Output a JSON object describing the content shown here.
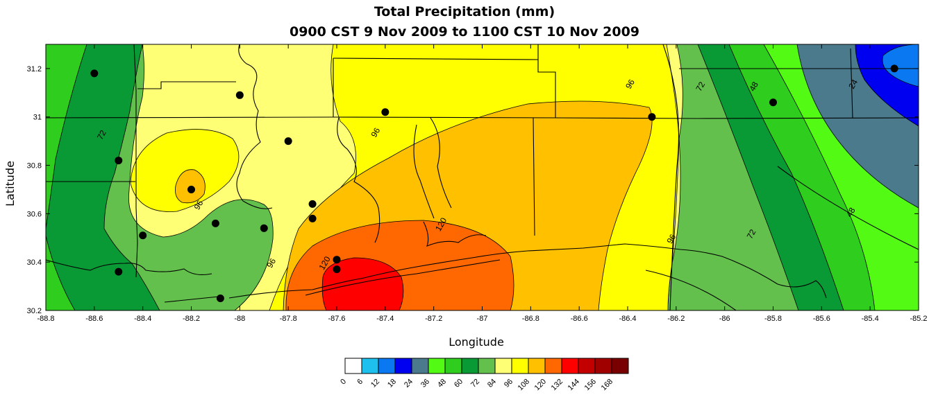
{
  "chart_data": {
    "type": "heatmap",
    "subtype": "filled contour map",
    "title": "Total Precipitation (mm)",
    "subtitle": "0900 CST 9 Nov 2009 to 1100 CST 10 Nov 2009",
    "xlabel": "Longitude",
    "ylabel": "Latitude",
    "xlim": [
      -88.8,
      -85.2
    ],
    "ylim": [
      30.2,
      31.3
    ],
    "x_ticks": [
      "-88.8",
      "-88.6",
      "-88.4",
      "-88.2",
      "-88",
      "-87.8",
      "-87.6",
      "-87.4",
      "-87.2",
      "-87",
      "-86.8",
      "-86.6",
      "-86.4",
      "-86.2",
      "-86",
      "-85.8",
      "-85.6",
      "-85.4",
      "-85.2"
    ],
    "y_ticks": [
      "30.2",
      "30.4",
      "30.6",
      "30.8",
      "31",
      "31.2"
    ],
    "legend": {
      "placement": "bottom",
      "levels": [
        "0",
        "6",
        "12",
        "18",
        "24",
        "36",
        "48",
        "60",
        "72",
        "84",
        "96",
        "108",
        "120",
        "132",
        "144",
        "156",
        "168"
      ],
      "colors": [
        "#ffffff",
        "#1ec0ee",
        "#0a78f0",
        "#0000f0",
        "#4a7a8c",
        "#53fa13",
        "#2fcd1d",
        "#0a9a35",
        "#63c04c",
        "#ffff75",
        "#ffff00",
        "#ffc000",
        "#ff6800",
        "#ff0000",
        "#c20000",
        "#a00000",
        "#780000"
      ]
    },
    "contour_labels": [
      {
        "value": "72",
        "lon": -88.56,
        "lat": 30.92
      },
      {
        "value": "96",
        "lon": -88.16,
        "lat": 30.63
      },
      {
        "value": "96",
        "lon": -87.86,
        "lat": 30.39
      },
      {
        "value": "96",
        "lon": -87.43,
        "lat": 30.93
      },
      {
        "value": "96",
        "lon": -86.38,
        "lat": 31.13
      },
      {
        "value": "96",
        "lon": -86.21,
        "lat": 30.49
      },
      {
        "value": "120",
        "lon": -87.64,
        "lat": 30.39
      },
      {
        "value": "120",
        "lon": -87.16,
        "lat": 30.55
      },
      {
        "value": "72",
        "lon": -86.09,
        "lat": 31.12
      },
      {
        "value": "72",
        "lon": -85.88,
        "lat": 30.51
      },
      {
        "value": "48",
        "lon": -85.87,
        "lat": 31.12
      },
      {
        "value": "48",
        "lon": -85.47,
        "lat": 30.6
      },
      {
        "value": "24",
        "lon": -85.46,
        "lat": 31.13
      }
    ],
    "stations": [
      {
        "lon": -88.6,
        "lat": 31.18
      },
      {
        "lon": -88.0,
        "lat": 31.09
      },
      {
        "lon": -87.4,
        "lat": 31.02
      },
      {
        "lon": -86.3,
        "lat": 31.0
      },
      {
        "lon": -85.8,
        "lat": 31.06
      },
      {
        "lon": -85.3,
        "lat": 31.2
      },
      {
        "lon": -88.5,
        "lat": 30.82
      },
      {
        "lon": -87.8,
        "lat": 30.9
      },
      {
        "lon": -88.2,
        "lat": 30.7
      },
      {
        "lon": -87.7,
        "lat": 30.64
      },
      {
        "lon": -87.7,
        "lat": 30.58
      },
      {
        "lon": -88.1,
        "lat": 30.56
      },
      {
        "lon": -87.9,
        "lat": 30.54
      },
      {
        "lon": -88.4,
        "lat": 30.51
      },
      {
        "lon": -87.6,
        "lat": 30.41
      },
      {
        "lon": -87.6,
        "lat": 30.37
      },
      {
        "lon": -88.5,
        "lat": 30.36
      },
      {
        "lon": -88.08,
        "lat": 30.25
      }
    ]
  }
}
